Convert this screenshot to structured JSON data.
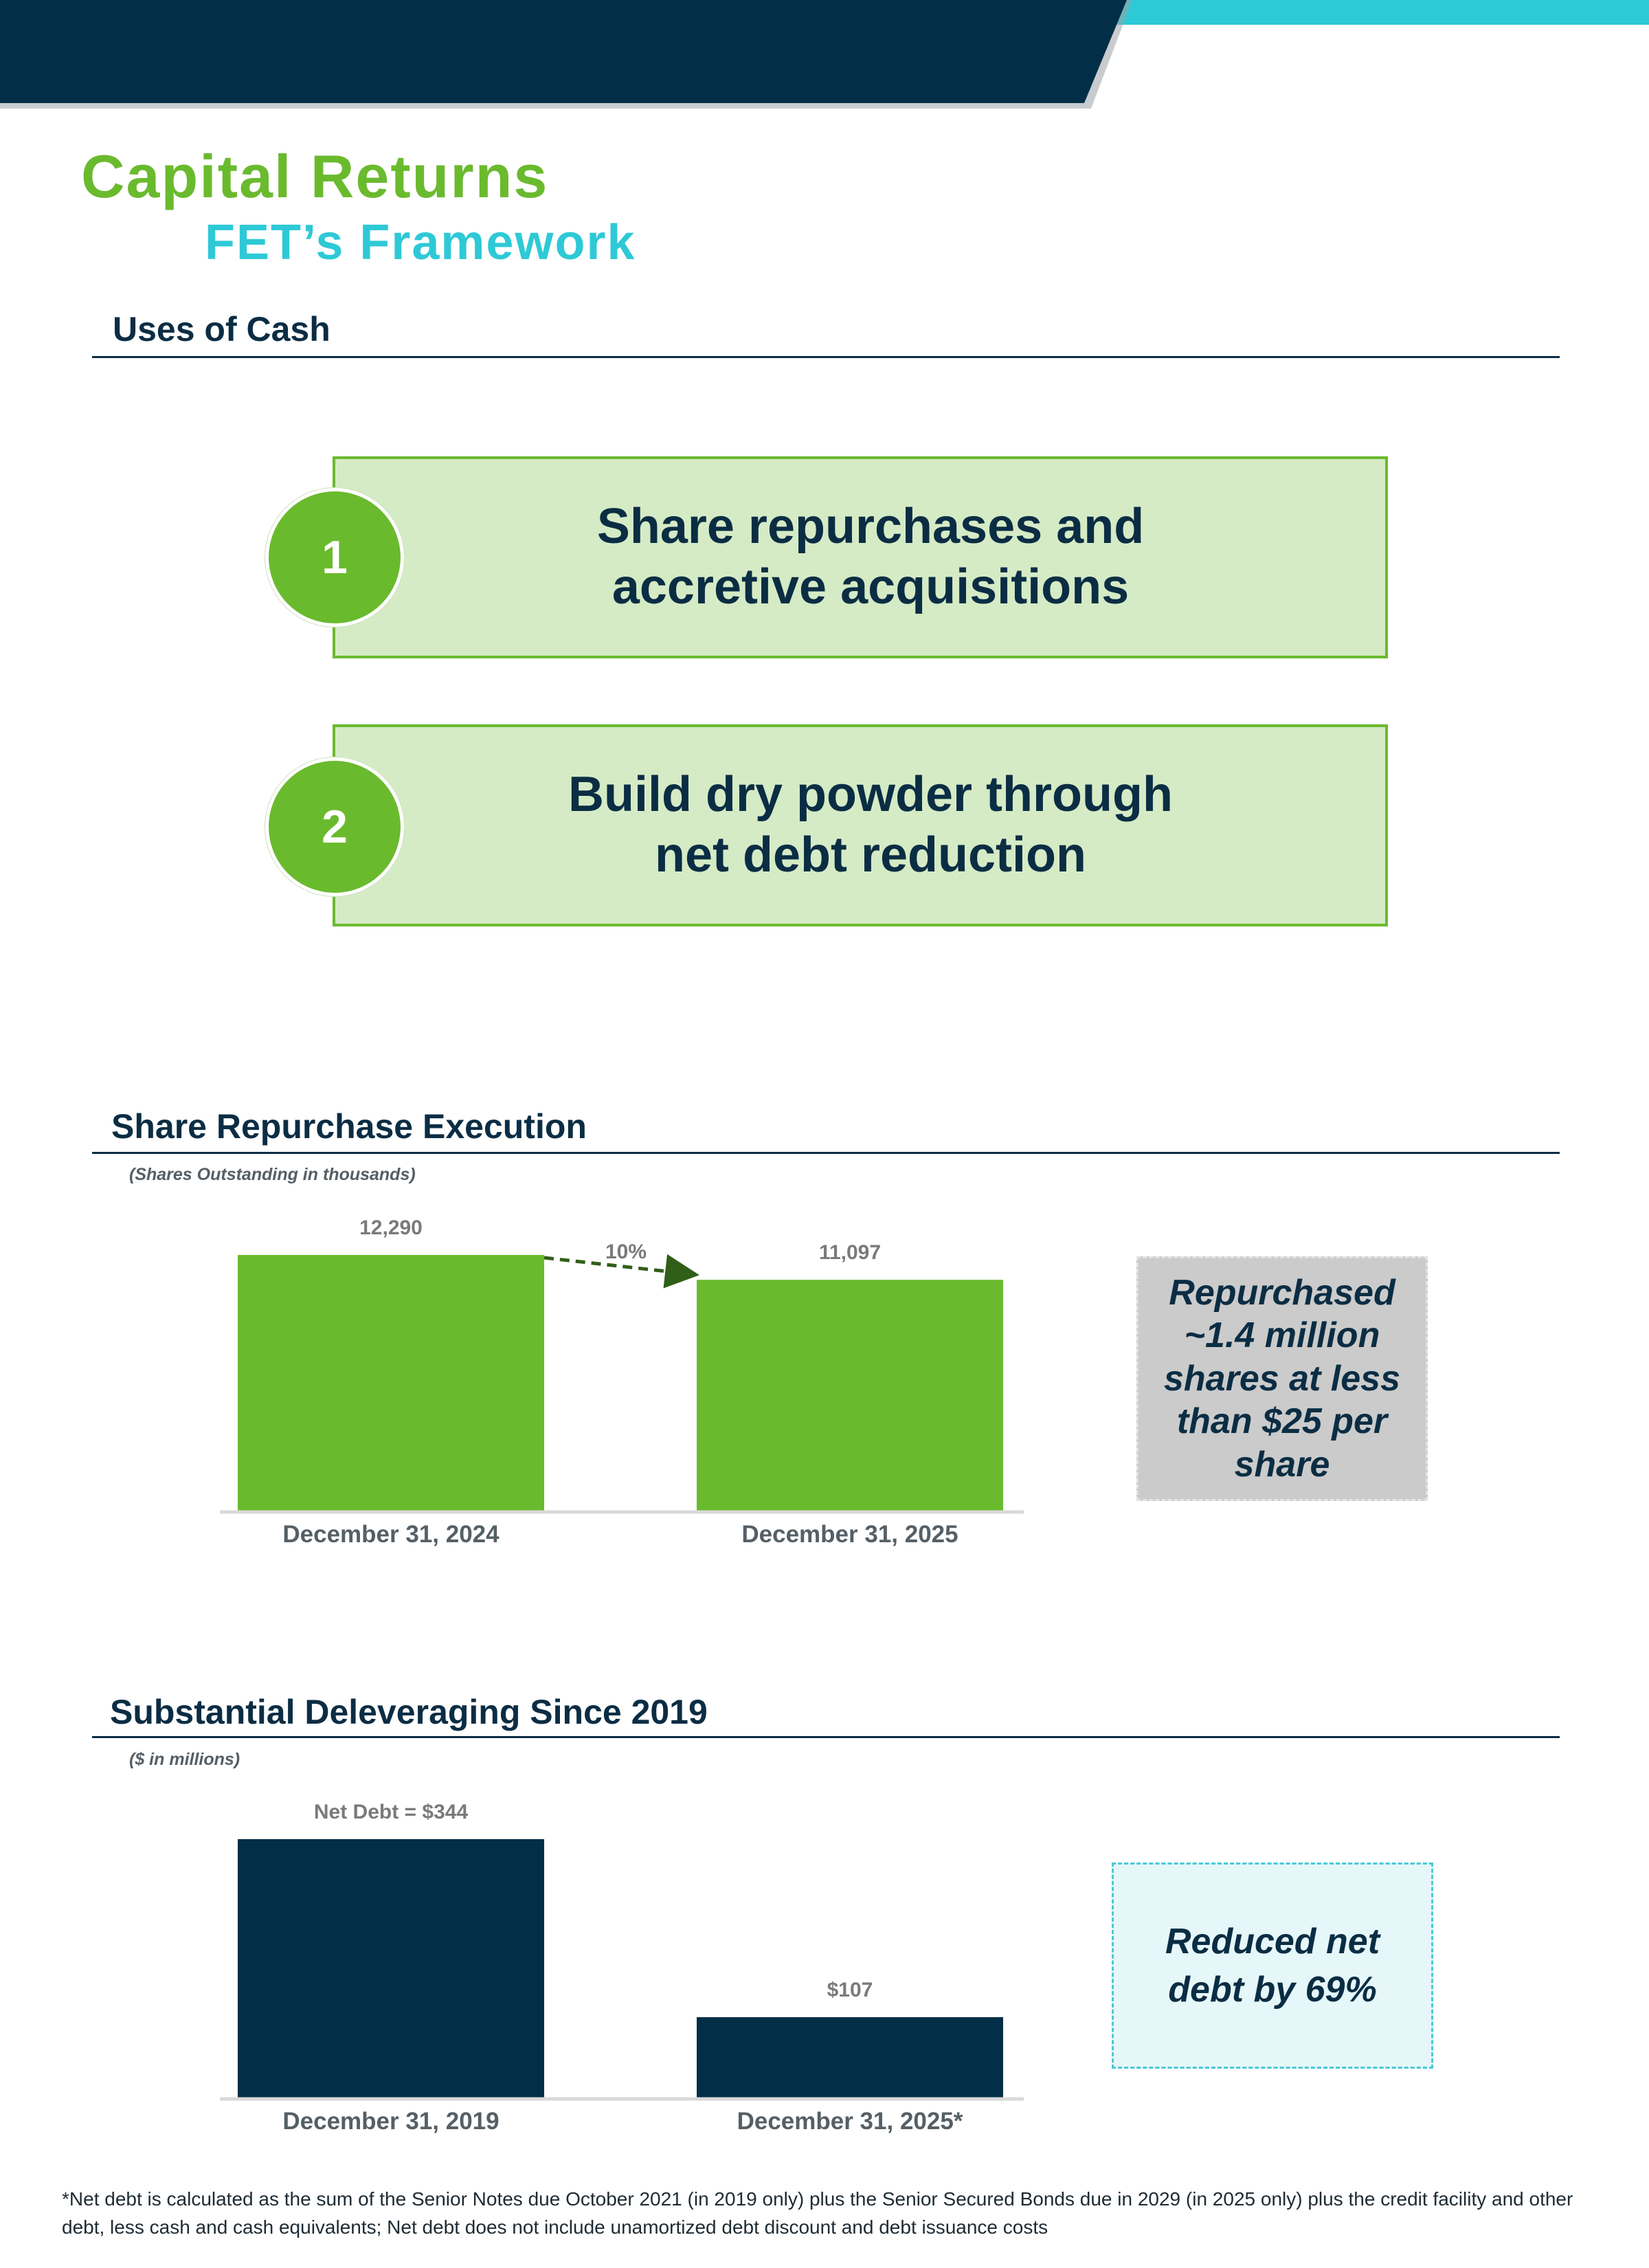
{
  "header": {
    "title": "Capital Returns",
    "subtitle": "FET’s Framework",
    "colors": {
      "navy": "#022e47",
      "cyan": "#2ec9d6",
      "green": "#6aba2e"
    }
  },
  "uses_of_cash": {
    "heading": "Uses of Cash",
    "items": [
      {
        "number": "1",
        "text": "Share repurchases and accretive acquisitions"
      },
      {
        "number": "2",
        "text": "Build dry powder through net debt reduction"
      }
    ]
  },
  "share_repurchase": {
    "heading": "Share Repurchase Execution",
    "note": "(Shares Outstanding in thousands)",
    "callout": "Repurchased ~1.4 million shares at less than $25 per share"
  },
  "deleveraging": {
    "heading": "Substantial Deleveraging Since 2019",
    "note": "($ in millions)",
    "callout": "Reduced net debt by 69%"
  },
  "footnote": "*Net debt is calculated as the sum of the Senior Notes due October 2021 (in 2019 only) plus the Senior Secured Bonds due in 2029 (in 2025 only) plus the credit facility and other debt, less cash and cash equivalents; Net debt does not include unamortized debt discount and debt issuance costs",
  "chart_data": [
    {
      "type": "bar",
      "title": "",
      "categories": [
        "December 31, 2024",
        "December 31, 2025"
      ],
      "values": [
        12290,
        11097
      ],
      "data_labels": [
        "12,290",
        "11,097"
      ],
      "annotation": "10%",
      "ylim": [
        0,
        12290
      ],
      "grid": false,
      "color": "#6aba2e"
    },
    {
      "type": "bar",
      "title": "",
      "categories": [
        "December 31, 2019",
        "December 31, 2025*"
      ],
      "values": [
        344,
        107
      ],
      "data_labels": [
        "Net Debt = $344",
        "$107"
      ],
      "ylim": [
        0,
        344
      ],
      "grid": false,
      "color": "#022e47"
    }
  ]
}
